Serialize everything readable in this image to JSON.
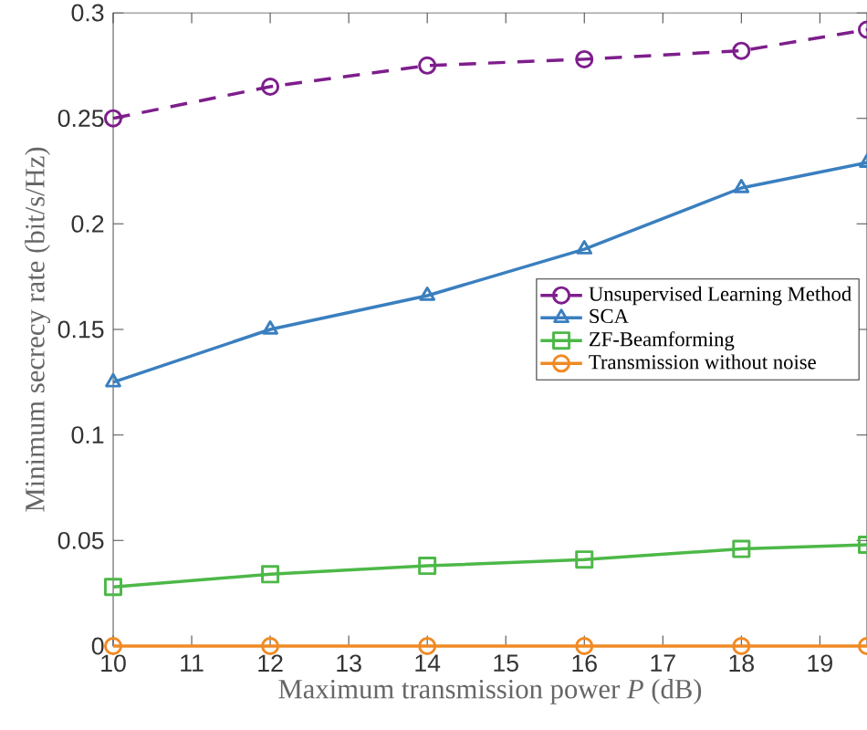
{
  "chart_data": {
    "type": "line",
    "xlabel": "Maximum transmission power *P* (dB)",
    "ylabel": "Minimum secrecy rate (bit/s/Hz)",
    "xlim": [
      10,
      19.6
    ],
    "xticks": [
      10,
      11,
      12,
      13,
      14,
      15,
      16,
      17,
      18,
      19
    ],
    "ylim": [
      0,
      0.3
    ],
    "yticks": [
      0,
      0.05,
      0.1,
      0.15,
      0.2,
      0.25,
      0.3
    ],
    "grid": false,
    "legend": "right",
    "series": [
      {
        "name": "Unsupervised Learning Method",
        "color": "#7e1e8c",
        "marker": "circle",
        "line_style": "dashed",
        "x": [
          10,
          12,
          14,
          16,
          18,
          19.6
        ],
        "values": [
          0.25,
          0.265,
          0.275,
          0.278,
          0.282,
          0.292
        ]
      },
      {
        "name": "SCA",
        "color": "#3a7fbf",
        "marker": "triangle",
        "line_style": "solid",
        "x": [
          10,
          12,
          14,
          16,
          18,
          19.6
        ],
        "values": [
          0.125,
          0.15,
          0.166,
          0.188,
          0.217,
          0.229
        ]
      },
      {
        "name": "ZF-Beamforming",
        "color": "#4db848",
        "marker": "square",
        "line_style": "solid",
        "x": [
          10,
          12,
          14,
          16,
          18,
          19.6
        ],
        "values": [
          0.028,
          0.034,
          0.038,
          0.041,
          0.046,
          0.048
        ]
      },
      {
        "name": "Transmission without noise",
        "color": "#f08a24",
        "marker": "circle",
        "line_style": "solid",
        "x": [
          10,
          12,
          14,
          16,
          18,
          19.6
        ],
        "values": [
          0,
          0,
          0,
          0,
          0,
          0
        ]
      }
    ]
  }
}
